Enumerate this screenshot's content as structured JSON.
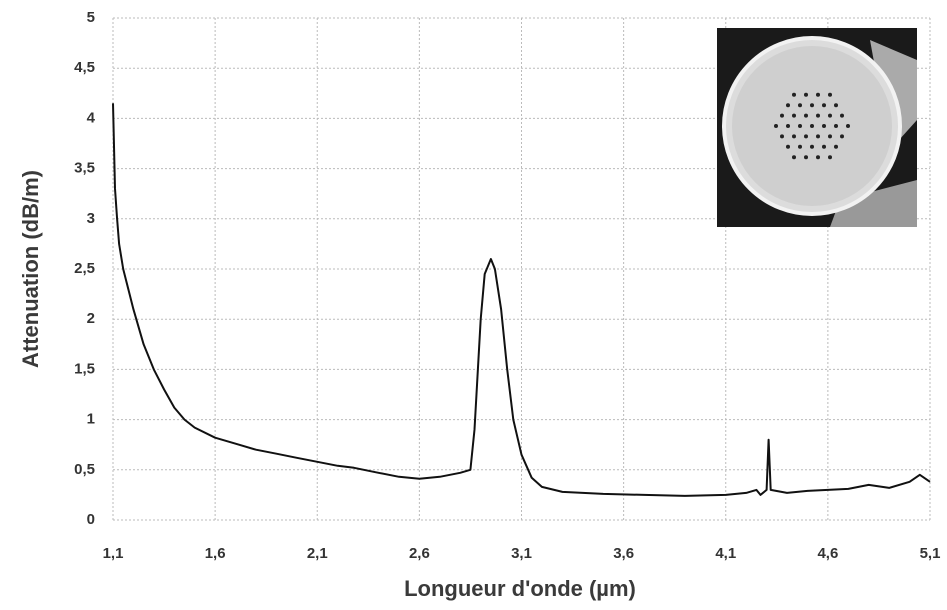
{
  "chart_data": {
    "type": "line",
    "x_label": "Longueur d'onde (µm)",
    "y_label": "Attenuation (dB/m)",
    "x": [
      1.1,
      1.11,
      1.12,
      1.13,
      1.15,
      1.2,
      1.25,
      1.3,
      1.35,
      1.4,
      1.45,
      1.5,
      1.6,
      1.7,
      1.8,
      1.9,
      2.0,
      2.1,
      2.2,
      2.28,
      2.4,
      2.5,
      2.6,
      2.7,
      2.8,
      2.85,
      2.87,
      2.9,
      2.92,
      2.95,
      2.97,
      3.0,
      3.03,
      3.06,
      3.1,
      3.15,
      3.2,
      3.3,
      3.5,
      3.7,
      3.9,
      4.1,
      4.2,
      4.25,
      4.27,
      4.3,
      4.31,
      4.32,
      4.4,
      4.5,
      4.6,
      4.7,
      4.8,
      4.9,
      5.0,
      5.05,
      5.1
    ],
    "series": [
      {
        "color": "#111111",
        "values": [
          4.15,
          3.3,
          3.0,
          2.75,
          2.5,
          2.1,
          1.75,
          1.5,
          1.3,
          1.12,
          1.0,
          0.92,
          0.82,
          0.76,
          0.7,
          0.66,
          0.62,
          0.58,
          0.54,
          0.52,
          0.47,
          0.43,
          0.41,
          0.43,
          0.47,
          0.5,
          0.9,
          2.0,
          2.45,
          2.6,
          2.5,
          2.1,
          1.5,
          1.0,
          0.65,
          0.42,
          0.33,
          0.28,
          0.26,
          0.25,
          0.24,
          0.25,
          0.27,
          0.3,
          0.25,
          0.3,
          0.8,
          0.3,
          0.27,
          0.29,
          0.3,
          0.31,
          0.35,
          0.32,
          0.38,
          0.45,
          0.38
        ]
      }
    ],
    "xlim": [
      1.1,
      5.1
    ],
    "xticks": [
      {
        "value": 1.1,
        "label": "1,1"
      },
      {
        "value": 1.6,
        "label": "1,6"
      },
      {
        "value": 2.1,
        "label": "2,1"
      },
      {
        "value": 2.6,
        "label": "2,6"
      },
      {
        "value": 3.1,
        "label": "3,1"
      },
      {
        "value": 3.6,
        "label": "3,6"
      },
      {
        "value": 4.1,
        "label": "4,1"
      },
      {
        "value": 4.6,
        "label": "4,6"
      },
      {
        "value": 5.1,
        "label": "5,1"
      }
    ],
    "ylim": [
      0,
      5
    ],
    "yticks": [
      0,
      {
        "value": 0.5,
        "label": "0,5"
      },
      1,
      {
        "value": 1.5,
        "label": "1,5"
      },
      2,
      {
        "value": 2.5,
        "label": "2,5"
      },
      3,
      {
        "value": 3.5,
        "label": "3,5"
      },
      4,
      {
        "value": 4.5,
        "label": "4,5"
      },
      5
    ],
    "grid": true
  }
}
